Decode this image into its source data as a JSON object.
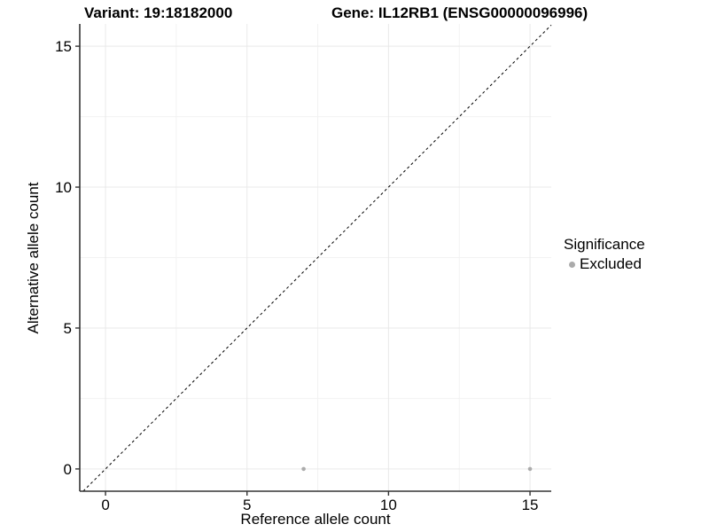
{
  "figure": {
    "title_left": "Variant: 19:18182000",
    "title_right": "Gene: IL12RB1 (ENSG00000096996)"
  },
  "chart_data": {
    "type": "scatter",
    "title": "Variant: 19:18182000 — Gene: IL12RB1 (ENSG00000096996)",
    "xlabel": "Reference allele count",
    "ylabel": "Alternative allele count",
    "xticks": [
      0,
      5,
      10,
      15
    ],
    "yticks": [
      0,
      5,
      10,
      15
    ],
    "minor_gridlines": [
      2.5,
      7.5,
      12.5
    ],
    "xlim": [
      -0.91,
      15.75
    ],
    "ylim": [
      -0.79,
      15.79
    ],
    "grid": "major+minor",
    "identity_line": {
      "slope": 1,
      "intercept": 0,
      "style": "dashed",
      "color": "#000000"
    },
    "series": [
      {
        "name": "Excluded",
        "color": "#ababab",
        "marker": "circle",
        "points": [
          [
            7,
            0
          ],
          [
            15,
            0
          ]
        ]
      }
    ],
    "legend": {
      "title": "Significance",
      "position": "right",
      "items": [
        {
          "label": "Excluded",
          "color": "#ababab"
        }
      ]
    },
    "colors": {
      "background": "#ffffff",
      "grid_major": "#e9e9e9",
      "grid_minor": "#f2f2f2",
      "axis": "#333333",
      "text": "#000000"
    }
  }
}
